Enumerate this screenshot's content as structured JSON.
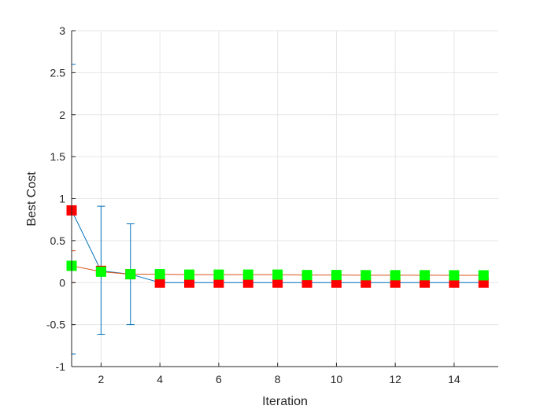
{
  "chart_data": {
    "type": "line",
    "title": "",
    "xlabel": "Iteration",
    "ylabel": "Best Cost",
    "xlim": [
      1,
      15.5
    ],
    "ylim": [
      -1,
      3
    ],
    "xticks": [
      2,
      4,
      6,
      8,
      10,
      12,
      14
    ],
    "yticks": [
      -1,
      -0.5,
      0,
      0.5,
      1,
      1.5,
      2,
      2.5,
      3
    ],
    "ytick_labels": [
      "-1",
      "-0.5",
      "0",
      "0.5",
      "1",
      "1.5",
      "2",
      "2.5",
      "3"
    ],
    "grid": true,
    "x": [
      1,
      2,
      3,
      4,
      5,
      6,
      7,
      8,
      9,
      10,
      11,
      12,
      13,
      14,
      15
    ],
    "series": [
      {
        "color": "#0072bd",
        "marker_color": "#ff0000",
        "values": [
          0.86,
          0.14,
          0.1,
          0.0,
          0.0,
          0.0,
          0.0,
          0.0,
          0.0,
          0.0,
          0.0,
          0.0,
          0.0,
          0.0,
          0.0
        ],
        "error": [
          [
            -0.85,
            2.6
          ],
          [
            -0.62,
            0.91
          ],
          [
            -0.5,
            0.7
          ],
          null,
          null,
          null,
          null,
          null,
          null,
          null,
          null,
          null,
          null,
          null,
          null
        ]
      },
      {
        "color": "#d95319",
        "marker_color": "#00ff00",
        "values": [
          0.2,
          0.13,
          0.1,
          0.1,
          0.095,
          0.095,
          0.095,
          0.095,
          0.09,
          0.09,
          0.088,
          0.088,
          0.088,
          0.087,
          0.087
        ],
        "error": [
          [
            0.0,
            0.38
          ],
          [
            0.09,
            0.19
          ],
          null,
          null,
          null,
          null,
          null,
          null,
          null,
          null,
          null,
          null,
          null,
          null,
          null
        ]
      }
    ]
  }
}
